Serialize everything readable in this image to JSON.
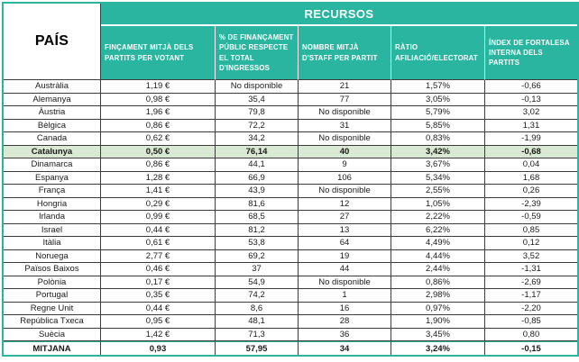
{
  "chart_data": {
    "type": "table",
    "title": "RECURSOS",
    "row_header": "PAÍS",
    "columns": [
      "FINÇAMENT MITJÀ DELS PARTITS PER VOTANT",
      "% DE FINANÇAMENT PÚBLIC RESPECTE EL TOTAL D'INGRESSOS",
      "NOMBRE MITJÀ D'STAFF PER PARTIT",
      "RÀTIO AFILIACIÓ/ELECTORAT",
      "ÍNDEX DE FORTALESA INTERNA DELS PARTITS"
    ],
    "missing_value_label": "No disponible",
    "rows": [
      {
        "country": "Austràlia",
        "values": [
          "1,19 €",
          "No disponible",
          "21",
          "1,57%",
          "-0,66"
        ],
        "style": "normal"
      },
      {
        "country": "Alemanya",
        "values": [
          "0,98 €",
          "35,4",
          "77",
          "3,05%",
          "-0,13"
        ],
        "style": "normal"
      },
      {
        "country": "Àustria",
        "values": [
          "1,96 €",
          "79,8",
          "No disponible",
          "5,79%",
          "3,02"
        ],
        "style": "normal"
      },
      {
        "country": "Bèlgica",
        "values": [
          "0,86 €",
          "72,2",
          "31",
          "5,85%",
          "1,31"
        ],
        "style": "normal"
      },
      {
        "country": "Canada",
        "values": [
          "0,62 €",
          "34,2",
          "No disponible",
          "0,83%",
          "-1,99"
        ],
        "style": "normal"
      },
      {
        "country": "Catalunya",
        "values": [
          "0,50 €",
          "76,14",
          "40",
          "3,42%",
          "-0,68"
        ],
        "style": "highlight"
      },
      {
        "country": "Dinamarca",
        "values": [
          "0,86 €",
          "44,1",
          "9",
          "3,67%",
          "0,04"
        ],
        "style": "normal"
      },
      {
        "country": "Espanya",
        "values": [
          "1,28 €",
          "66,9",
          "106",
          "5,34%",
          "1,68"
        ],
        "style": "normal"
      },
      {
        "country": "França",
        "values": [
          "1,41 €",
          "43,9",
          "No disponible",
          "2,55%",
          "0,26"
        ],
        "style": "normal"
      },
      {
        "country": "Hongria",
        "values": [
          "0,29 €",
          "81,6",
          "12",
          "1,05%",
          "-2,39"
        ],
        "style": "normal"
      },
      {
        "country": "Irlanda",
        "values": [
          "0,99 €",
          "68,5",
          "27",
          "2,22%",
          "-0,59"
        ],
        "style": "normal"
      },
      {
        "country": "Israel",
        "values": [
          "0,44 €",
          "81,2",
          "13",
          "6,22%",
          "0,85"
        ],
        "style": "normal"
      },
      {
        "country": "Itàlia",
        "values": [
          "0,61 €",
          "53,8",
          "64",
          "4,49%",
          "0,12"
        ],
        "style": "normal"
      },
      {
        "country": "Noruega",
        "values": [
          "2,77 €",
          "69,2",
          "19",
          "4,44%",
          "3,52"
        ],
        "style": "normal"
      },
      {
        "country": "Països Baixos",
        "values": [
          "0,46 €",
          "37",
          "44",
          "2,44%",
          "-1,31"
        ],
        "style": "normal"
      },
      {
        "country": "Polònia",
        "values": [
          "0,17 €",
          "54,9",
          "No disponible",
          "0,86%",
          "-2,69"
        ],
        "style": "normal"
      },
      {
        "country": "Portugal",
        "values": [
          "0,35 €",
          "74,2",
          "1",
          "2,98%",
          "-1,17"
        ],
        "style": "normal"
      },
      {
        "country": "Regne Unit",
        "values": [
          "0,44 €",
          "8,6",
          "16",
          "0,97%",
          "-2,20"
        ],
        "style": "normal"
      },
      {
        "country": "República Txeca",
        "values": [
          "0,95 €",
          "48,1",
          "28",
          "1,90%",
          "-0,85"
        ],
        "style": "normal"
      },
      {
        "country": "Suècia",
        "values": [
          "1,42 €",
          "71,3",
          "36",
          "3,45%",
          "0,80"
        ],
        "style": "normal"
      },
      {
        "country": "MITJANA",
        "values": [
          "0,93",
          "57,95",
          "34",
          "3,24%",
          "-0,15"
        ],
        "style": "total"
      }
    ]
  },
  "colors": {
    "teal": "#2AB5A0",
    "highlight_row": "#DAE9D3",
    "header_text": "#FFFFFF",
    "body_text": "#1A1A1A",
    "border_dark": "#3C3C3C"
  }
}
